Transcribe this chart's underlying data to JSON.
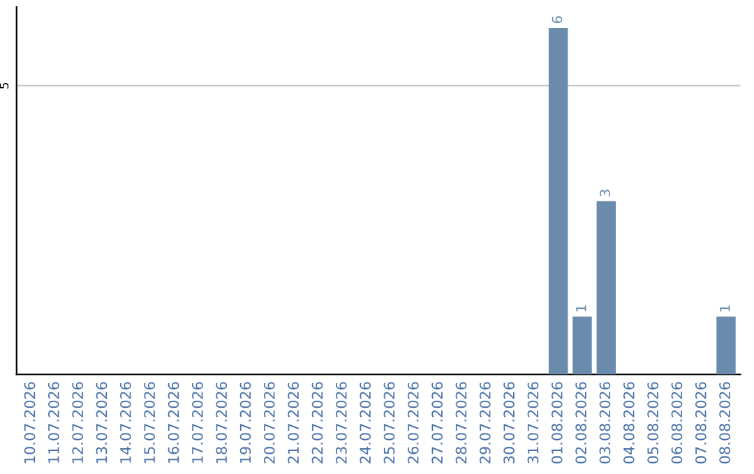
{
  "chart_data": {
    "type": "bar",
    "categories": [
      "10.07.2026",
      "11.07.2026",
      "12.07.2026",
      "13.07.2026",
      "14.07.2026",
      "15.07.2026",
      "16.07.2026",
      "17.07.2026",
      "18.07.2026",
      "19.07.2026",
      "20.07.2026",
      "21.07.2026",
      "22.07.2026",
      "23.07.2026",
      "24.07.2026",
      "25.07.2026",
      "26.07.2026",
      "27.07.2026",
      "28.07.2026",
      "29.07.2026",
      "30.07.2026",
      "31.07.2026",
      "01.08.2026",
      "02.08.2026",
      "03.08.2026",
      "04.08.2026",
      "05.08.2026",
      "06.08.2026",
      "07.08.2026",
      "08.08.2026"
    ],
    "values": [
      null,
      null,
      null,
      null,
      null,
      null,
      null,
      null,
      null,
      null,
      null,
      null,
      null,
      null,
      null,
      null,
      null,
      null,
      null,
      null,
      null,
      null,
      6,
      1,
      3,
      null,
      null,
      null,
      null,
      1
    ],
    "value_labels": [
      null,
      null,
      null,
      null,
      null,
      null,
      null,
      null,
      null,
      null,
      null,
      null,
      null,
      null,
      null,
      null,
      null,
      null,
      null,
      null,
      null,
      null,
      "6",
      "1",
      "3",
      null,
      null,
      null,
      null,
      "1"
    ],
    "color": "#6a8bab",
    "ref_lines": [
      {
        "axis": "y",
        "value": 5,
        "label": "5",
        "color": "#c8c8c8"
      }
    ]
  }
}
